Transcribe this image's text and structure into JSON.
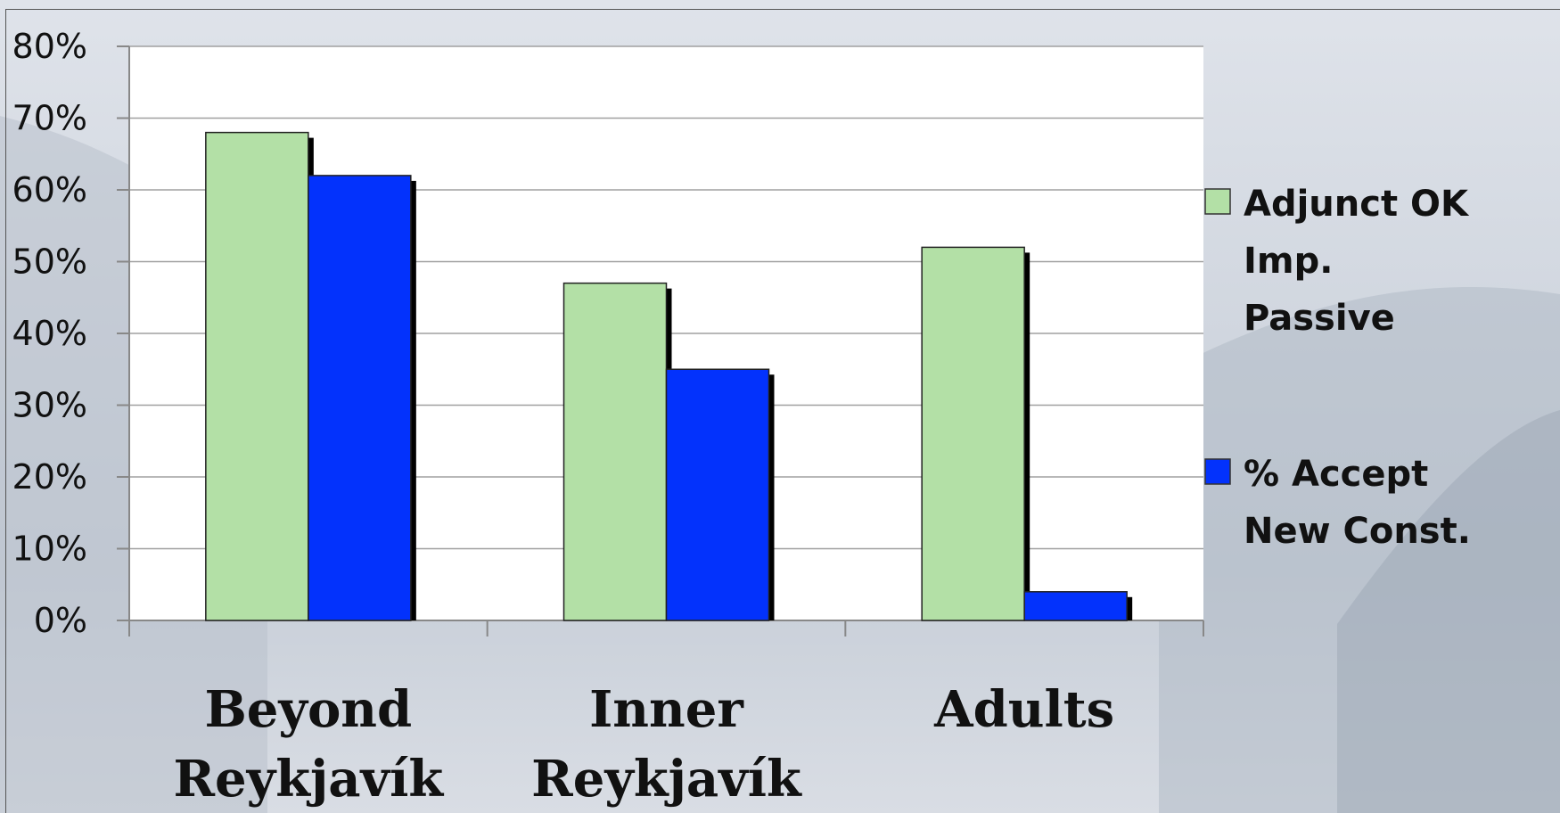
{
  "chart_data": {
    "type": "bar",
    "categories": [
      [
        "Beyond",
        "Reykjavík"
      ],
      [
        "Inner",
        "Reykjavík"
      ],
      [
        "Adults"
      ]
    ],
    "series": [
      {
        "name": [
          "Adjunct OK",
          "Imp.",
          "Passive"
        ],
        "values": [
          68,
          47,
          52
        ],
        "color": "#b3e0a6"
      },
      {
        "name": [
          "% Accept",
          "New Const."
        ],
        "values": [
          62,
          35,
          4
        ],
        "color": "#0332fc"
      }
    ],
    "ylim": [
      0,
      80
    ],
    "yticks": [
      0,
      10,
      20,
      30,
      40,
      50,
      60,
      70,
      80
    ],
    "ytick_labels": [
      "0%",
      "10%",
      "20%",
      "30%",
      "40%",
      "50%",
      "60%",
      "70%",
      "80%"
    ],
    "grid": true,
    "legend_position": "right"
  }
}
